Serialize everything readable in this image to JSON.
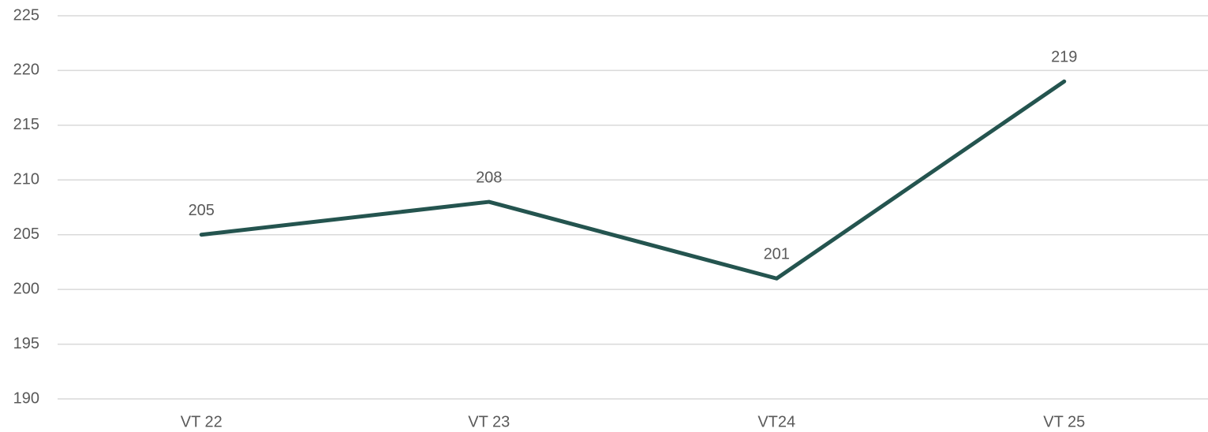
{
  "chart_data": {
    "type": "line",
    "categories": [
      "VT 22",
      "VT 23",
      "VT24",
      "VT 25"
    ],
    "series": [
      {
        "color": "#24544f",
        "values": [
          205,
          208,
          201,
          219
        ]
      }
    ],
    "ylim": [
      190,
      225
    ],
    "yticks": [
      190,
      195,
      200,
      205,
      210,
      215,
      220,
      225
    ],
    "grid": true
  }
}
